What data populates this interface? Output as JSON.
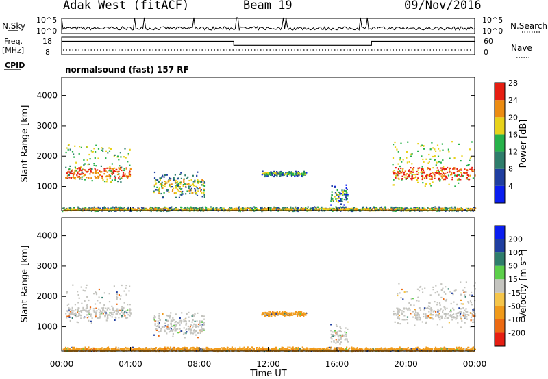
{
  "header": {
    "station": "Adak West (fitACF)",
    "beam": "Beam 19",
    "date": "09/Nov/2016"
  },
  "panels": {
    "nsky_label": "N.Sky",
    "nsky_ticks": [
      "10^5",
      "10^0"
    ],
    "nsearch_label": "N.Search",
    "nsearch_ticks": [
      "10^5",
      "10^0"
    ],
    "freq_label": "Freq.",
    "freq_unit": "[MHz]",
    "freq_ticks": [
      "18",
      "8"
    ],
    "nave_label": "Nave",
    "nave_ticks": [
      "60",
      "0"
    ],
    "cpid_label": "CPID",
    "cpid_value": "normalsound (fast) 157 RF"
  },
  "power_colorbar": {
    "title": "Power [dB]",
    "levels": [
      "4",
      "8",
      "12",
      "16",
      "20",
      "24",
      "28"
    ],
    "colors": [
      "#0a1ef0",
      "#1f3ea0",
      "#2e7d6b",
      "#27b24a",
      "#e8d21a",
      "#ec8c12",
      "#e61e12"
    ]
  },
  "velocity_colorbar": {
    "title": "Velocity [m s⁻¹]",
    "levels": [
      "-200",
      "-100",
      "-50",
      "-15",
      "15",
      "50",
      "100",
      "200"
    ],
    "colors": [
      "#e61e12",
      "#ec6a12",
      "#f09a1a",
      "#f5c54a",
      "#c4c4bf",
      "#5ccf4a",
      "#2e7d6b",
      "#1f3ea0",
      "#0a1ef0"
    ]
  },
  "chart_data": {
    "type": "heatmap",
    "title": "Adak West (fitACF)  Beam 19  09/Nov/2016",
    "xlabel": "Time UT",
    "ylabel": "Slant Range [km]",
    "xlim": [
      0,
      24
    ],
    "ylim": [
      200,
      4600
    ],
    "xticks": [
      "00:00",
      "04:00",
      "08:00",
      "12:00",
      "16:00",
      "20:00",
      "00:00"
    ],
    "yticks": [
      "1000",
      "2000",
      "3000",
      "4000"
    ],
    "frequency_mhz": [
      {
        "start": 0,
        "end": 10,
        "value": 15
      },
      {
        "start": 10,
        "end": 18,
        "value": 10.5
      },
      {
        "start": 18,
        "end": 24,
        "value": 15
      }
    ],
    "scatter_regions": [
      {
        "t0": 0.2,
        "t1": 4.0,
        "r0": 1150,
        "r1": 2400,
        "core_r0": 1300,
        "core_r1": 1650,
        "power_db": 20,
        "velocity": 0
      },
      {
        "t0": 5.3,
        "t1": 8.3,
        "r0": 650,
        "r1": 1500,
        "core_r0": 800,
        "core_r1": 1250,
        "power_db": 14,
        "velocity": 0
      },
      {
        "t0": 11.6,
        "t1": 14.2,
        "r0": 1350,
        "r1": 1520,
        "core_r0": 1400,
        "core_r1": 1480,
        "power_db": 12,
        "velocity": -50
      },
      {
        "t0": 15.6,
        "t1": 16.6,
        "r0": 400,
        "r1": 1100,
        "core_r0": 500,
        "core_r1": 900,
        "power_db": 10,
        "velocity": 0
      },
      {
        "t0": 19.2,
        "t1": 24.0,
        "r0": 1000,
        "r1": 2500,
        "core_r0": 1250,
        "core_r1": 1650,
        "power_db": 22,
        "velocity": 0
      },
      {
        "t0": 0.0,
        "t1": 24.0,
        "r0": 200,
        "r1": 350,
        "core_r0": 220,
        "core_r1": 300,
        "power_db": 16,
        "velocity": -50
      }
    ]
  }
}
